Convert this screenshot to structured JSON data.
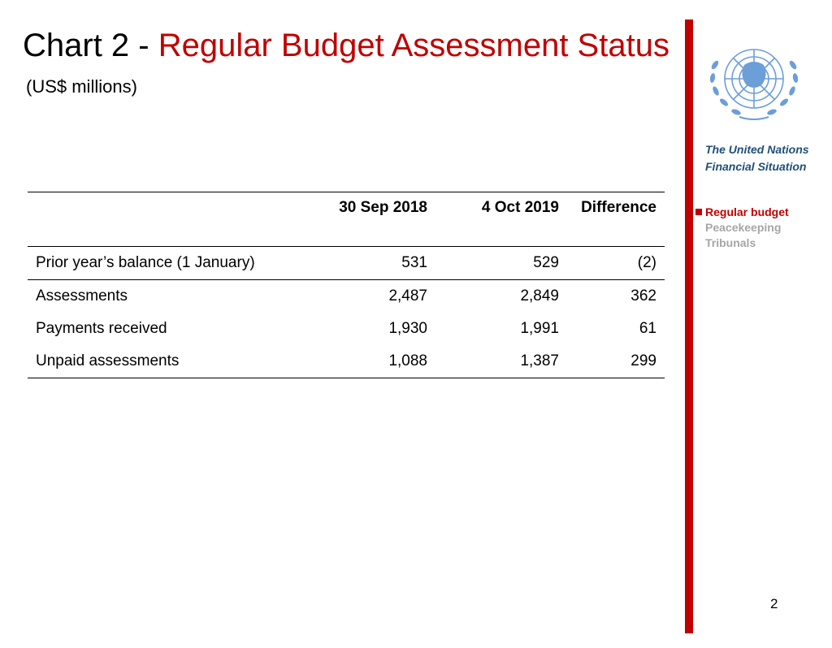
{
  "header": {
    "title_prefix": "Chart 2 - ",
    "title_main": "Regular Budget Assessment Status",
    "subtitle": "(US$ millions)"
  },
  "sidebar": {
    "title_line1": "The United Nations",
    "title_line2": "Financial Situation",
    "nav": [
      {
        "label": "Regular budget",
        "active": true
      },
      {
        "label": "Peacekeeping",
        "active": false
      },
      {
        "label": "Tribunals",
        "active": false
      }
    ],
    "emblem": "un-emblem-icon"
  },
  "table": {
    "columns": [
      "",
      "30 Sep 2018",
      "4 Oct 2019",
      "Difference"
    ],
    "rows": [
      {
        "label": "Prior year’s balance (1 January)",
        "sep2018": "531",
        "oct2019": "529",
        "difference": "(2)"
      },
      {
        "label": "Assessments",
        "sep2018": "2,487",
        "oct2019": "2,849",
        "difference": "362"
      },
      {
        "label": "Payments received",
        "sep2018": "1,930",
        "oct2019": "1,991",
        "difference": "61"
      },
      {
        "label": "Unpaid assessments",
        "sep2018": "1,088",
        "oct2019": "1,387",
        "difference": "299"
      }
    ]
  },
  "colors": {
    "accent": "#c00000",
    "sidebar_title": "#1f4e79",
    "inactive_nav": "#a6a6a6",
    "emblem": "#6c9ed8"
  },
  "page_number": "2"
}
